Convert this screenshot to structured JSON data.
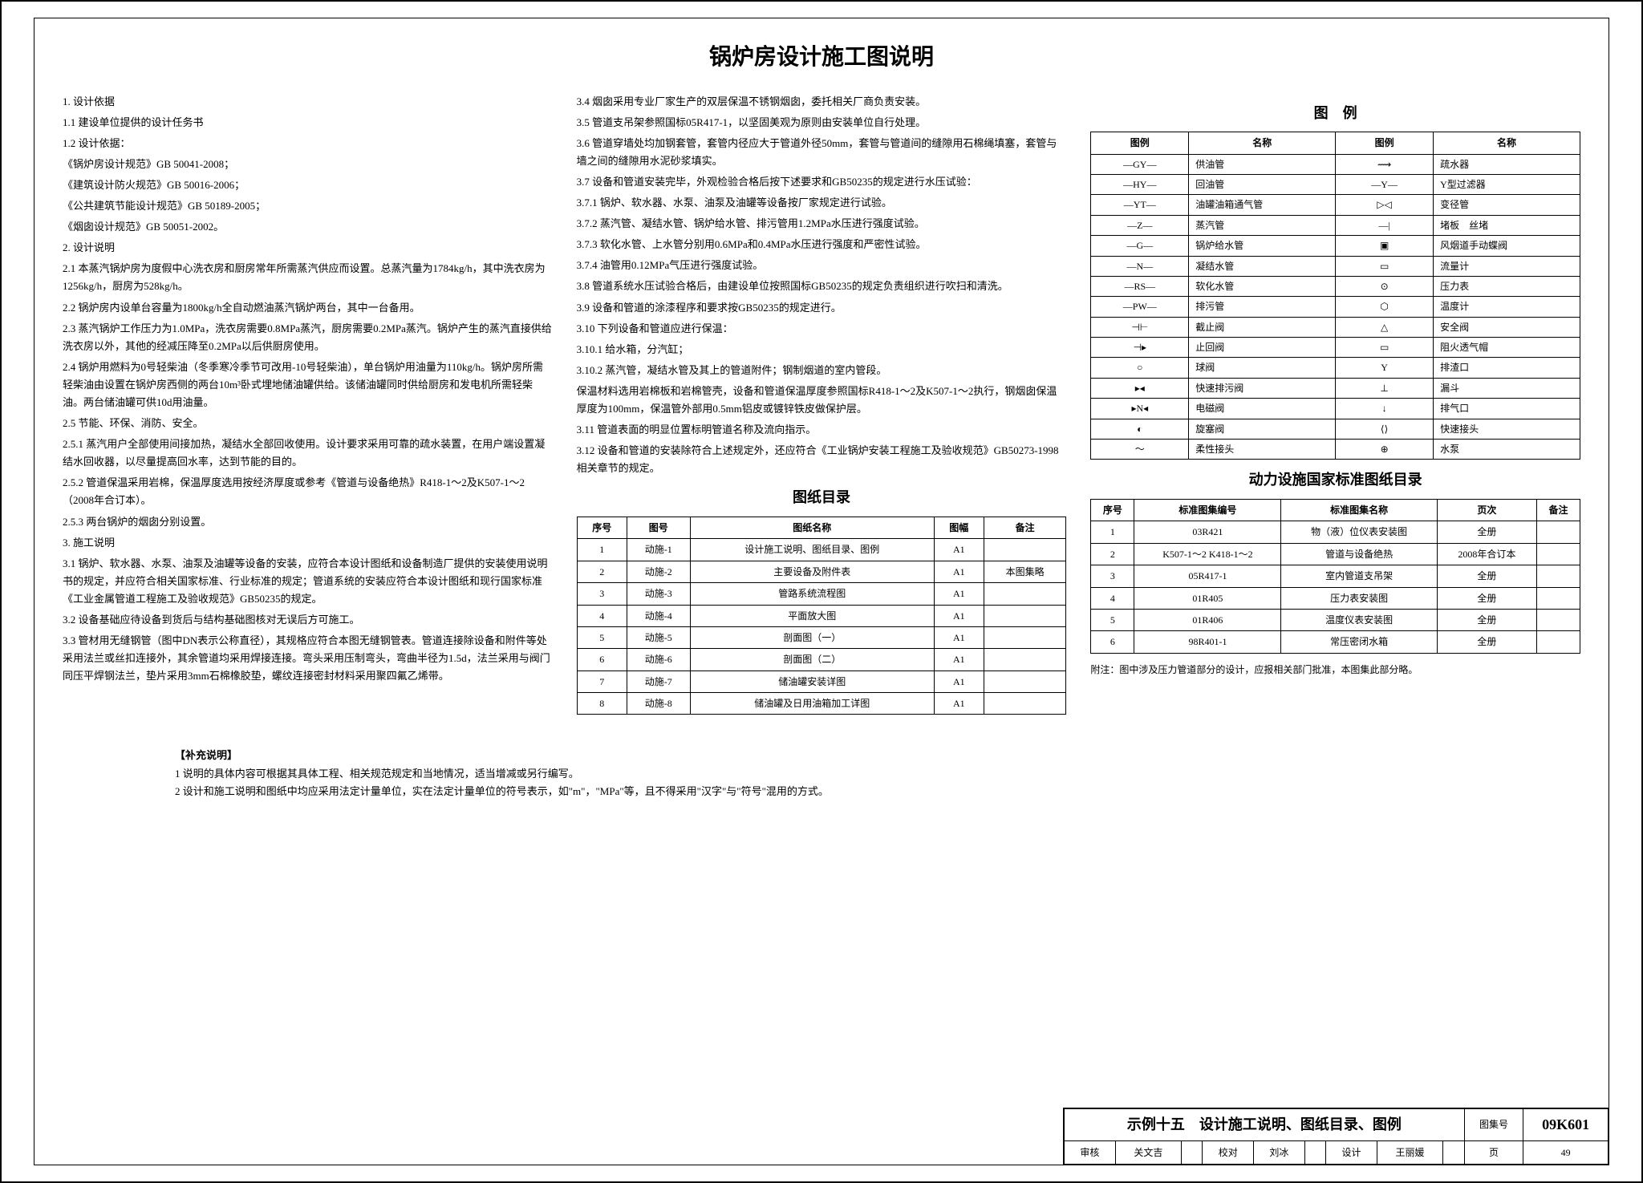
{
  "title": "锅炉房设计施工图说明",
  "left": [
    "1. 设计依据",
    "1.1 建设单位提供的设计任务书",
    "1.2 设计依据：",
    "《锅炉房设计规范》GB 50041-2008；",
    "《建筑设计防火规范》GB 50016-2006；",
    "《公共建筑节能设计规范》GB 50189-2005；",
    "《烟囱设计规范》GB 50051-2002。",
    "2. 设计说明",
    "2.1 本蒸汽锅炉房为度假中心洗衣房和厨房常年所需蒸汽供应而设置。总蒸汽量为1784kg/h，其中洗衣房为1256kg/h，厨房为528kg/h。",
    "2.2 锅炉房内设单台容量为1800kg/h全自动燃油蒸汽锅炉两台，其中一台备用。",
    "2.3 蒸汽锅炉工作压力为1.0MPa，洗衣房需要0.8MPa蒸汽，厨房需要0.2MPa蒸汽。锅炉产生的蒸汽直接供给洗衣房以外，其他的经减压降至0.2MPa以后供厨房使用。",
    "2.4 锅炉用燃料为0号轻柴油（冬季寒冷季节可改用-10号轻柴油），单台锅炉用油量为110kg/h。锅炉房所需轻柴油由设置在锅炉房西侧的两台10m³卧式埋地储油罐供给。该储油罐同时供给厨房和发电机所需轻柴油。两台储油罐可供10d用油量。",
    "2.5 节能、环保、消防、安全。",
    "2.5.1 蒸汽用户全部使用间接加热，凝结水全部回收使用。设计要求采用可靠的疏水装置，在用户端设置凝结水回收器，以尽量提高回水率，达到节能的目的。",
    "2.5.2 管道保温采用岩棉，保温厚度选用按经济厚度或参考《管道与设备绝热》R418-1～2及K507-1～2（2008年合订本）。",
    "2.5.3 两台锅炉的烟囱分别设置。",
    "3. 施工说明",
    "3.1 锅炉、软水器、水泵、油泵及油罐等设备的安装，应符合本设计图纸和设备制造厂提供的安装使用说明书的规定，并应符合相关国家标准、行业标准的规定；管道系统的安装应符合本设计图纸和现行国家标准《工业金属管道工程施工及验收规范》GB50235的规定。",
    "3.2 设备基础应待设备到货后与结构基础图核对无误后方可施工。",
    "3.3 管材用无缝钢管（图中DN表示公称直径），其规格应符合本图无缝钢管表。管道连接除设备和附件等处采用法兰或丝扣连接外，其余管道均采用焊接连接。弯头采用压制弯头，弯曲半径为1.5d，法兰采用与阀门同压平焊钢法兰，垫片采用3mm石棉橡胶垫，螺纹连接密封材料采用聚四氟乙烯带。"
  ],
  "mid": [
    "3.4 烟囱采用专业厂家生产的双层保温不锈钢烟囱，委托相关厂商负责安装。",
    "3.5 管道支吊架参照国标05R417-1，以坚固美观为原则由安装单位自行处理。",
    "3.6 管道穿墙处均加钢套管，套管内径应大于管道外径50mm，套管与管道间的缝隙用石棉绳填塞，套管与墙之间的缝隙用水泥砂浆填实。",
    "3.7 设备和管道安装完毕，外观检验合格后按下述要求和GB50235的规定进行水压试验：",
    "3.7.1 锅炉、软水器、水泵、油泵及油罐等设备按厂家规定进行试验。",
    "3.7.2 蒸汽管、凝结水管、锅炉给水管、排污管用1.2MPa水压进行强度试验。",
    "3.7.3 软化水管、上水管分别用0.6MPa和0.4MPa水压进行强度和严密性试验。",
    "3.7.4 油管用0.12MPa气压进行强度试验。",
    "3.8 管道系统水压试验合格后，由建设单位按照国标GB50235的规定负责组织进行吹扫和清洗。",
    "3.9 设备和管道的涂漆程序和要求按GB50235的规定进行。",
    "3.10 下列设备和管道应进行保温：",
    "3.10.1 给水箱，分汽缸；",
    "3.10.2 蒸汽管，凝结水管及其上的管道附件；钢制烟道的室内管段。",
    "保温材料选用岩棉板和岩棉管壳，设备和管道保温厚度参照国标R418-1～2及K507-1～2执行，钢烟囱保温厚度为100mm，保温管外部用0.5mm铝皮或镀锌铁皮做保护层。",
    "3.11 管道表面的明显位置标明管道名称及流向指示。",
    "3.12 设备和管道的安装除符合上述规定外，还应符合《工业锅炉安装工程施工及验收规范》GB50273-1998相关章节的规定。"
  ],
  "drawingsTitle": "图纸目录",
  "drawingsHead": [
    "序号",
    "图号",
    "图纸名称",
    "图幅",
    "备注"
  ],
  "drawings": [
    [
      "1",
      "动施-1",
      "设计施工说明、图纸目录、图例",
      "A1",
      ""
    ],
    [
      "2",
      "动施-2",
      "主要设备及附件表",
      "A1",
      "本图集略"
    ],
    [
      "3",
      "动施-3",
      "管路系统流程图",
      "A1",
      ""
    ],
    [
      "4",
      "动施-4",
      "平面放大图",
      "A1",
      ""
    ],
    [
      "5",
      "动施-5",
      "剖面图（一）",
      "A1",
      ""
    ],
    [
      "6",
      "动施-6",
      "剖面图（二）",
      "A1",
      ""
    ],
    [
      "7",
      "动施-7",
      "储油罐安装详图",
      "A1",
      ""
    ],
    [
      "8",
      "动施-8",
      "储油罐及日用油箱加工详图",
      "A1",
      ""
    ]
  ],
  "legendTitle": "图　例",
  "legendHead": [
    "图例",
    "名称",
    "图例",
    "名称"
  ],
  "legend": [
    [
      "—GY—",
      "供油管",
      "⟿",
      "疏水器"
    ],
    [
      "—HY—",
      "回油管",
      "—Y—",
      "Y型过滤器"
    ],
    [
      "—YT—",
      "油罐油箱通气管",
      "▷◁",
      "变径管"
    ],
    [
      "—Z—",
      "蒸汽管",
      "—|",
      "堵板　丝堵"
    ],
    [
      "—G—",
      "锅炉给水管",
      "▣",
      "风烟道手动蝶阀"
    ],
    [
      "—N—",
      "凝结水管",
      "▭",
      "流量计"
    ],
    [
      "—RS—",
      "软化水管",
      "⊙",
      "压力表"
    ],
    [
      "—PW—",
      "排污管",
      "⬡",
      "温度计"
    ],
    [
      "⊣⊢",
      "截止阀",
      "△",
      "安全阀"
    ],
    [
      "⊣▸",
      "止回阀",
      "▭",
      "阻火透气帽"
    ],
    [
      "○",
      "球阀",
      "Y",
      "排渣口"
    ],
    [
      "▸◂",
      "快速排污阀",
      "⊥",
      "漏斗"
    ],
    [
      "▸N◂",
      "电磁阀",
      "↓",
      "排气口"
    ],
    [
      "◐",
      "旋塞阀",
      "⟨⟩",
      "快速接头"
    ],
    [
      "～",
      "柔性接头",
      "⊕",
      "水泵"
    ]
  ],
  "stdTitle": "动力设施国家标准图纸目录",
  "stdHead": [
    "序号",
    "标准图集编号",
    "标准图集名称",
    "页次",
    "备注"
  ],
  "std": [
    [
      "1",
      "03R421",
      "物（液）位仪表安装图",
      "全册",
      ""
    ],
    [
      "2",
      "K507-1～2\nK418-1～2",
      "管道与设备绝热",
      "2008年合订本",
      ""
    ],
    [
      "3",
      "05R417-1",
      "室内管道支吊架",
      "全册",
      ""
    ],
    [
      "4",
      "01R405",
      "压力表安装图",
      "全册",
      ""
    ],
    [
      "5",
      "01R406",
      "温度仪表安装图",
      "全册",
      ""
    ],
    [
      "6",
      "98R401-1",
      "常压密闭水箱",
      "全册",
      ""
    ]
  ],
  "stdNote": "附注：图中涉及压力管道部分的设计，应报相关部门批准，本图集此部分略。",
  "supp": {
    "t": "【补充说明】",
    "l1": "1 说明的具体内容可根据其具体工程、相关规范规定和当地情况，适当增减或另行编写。",
    "l2": "2 设计和施工说明和图纸中均应采用法定计量单位，实在法定计量单位的符号表示，如\"m\"，\"MPa\"等，且不得采用\"汉字\"与\"符号\"混用的方式。"
  },
  "tb": {
    "main": "示例十五　设计施工说明、图纸目录、图例",
    "setLabel": "图集号",
    "set": "09K601",
    "r2": [
      "审核",
      "关文吉",
      "",
      "校对",
      "刘冰",
      "",
      "设计",
      "王丽媛",
      "",
      "页",
      "49"
    ]
  }
}
